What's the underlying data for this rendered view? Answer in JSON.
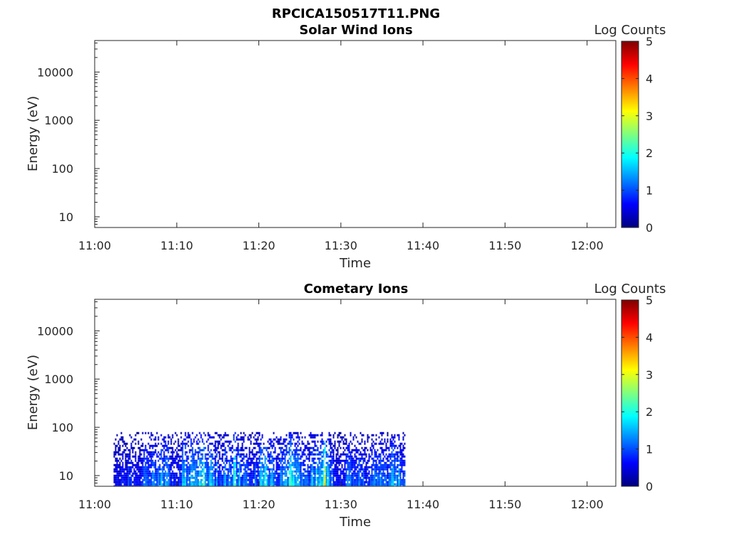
{
  "figure": {
    "title": "RPCICA150517T11.PNG"
  },
  "colorbar": {
    "colormap": "jet",
    "stops": [
      "#00007f",
      "#0000ff",
      "#007fff",
      "#00ffff",
      "#7fff7f",
      "#ffff00",
      "#ff7f00",
      "#ff0000",
      "#7f0000"
    ]
  },
  "chart_data": [
    {
      "type": "heatmap",
      "title": "Solar Wind Ions",
      "xlabel": "Time",
      "ylabel": "Energy (eV)",
      "x_tick_labels": [
        "11:00",
        "11:10",
        "11:20",
        "11:30",
        "11:40",
        "11:50",
        "12:00"
      ],
      "x_tick_minutes": [
        0,
        10,
        20,
        30,
        40,
        50,
        60
      ],
      "xlim_minutes": [
        0,
        63.5
      ],
      "y_scale": "log",
      "y_tick_labels": [
        "10",
        "100",
        "1000",
        "10000"
      ],
      "y_tick_values": [
        10,
        100,
        1000,
        10000
      ],
      "ylim": [
        6,
        45000
      ],
      "colorbar_label": "Log Counts",
      "colorbar_ticks": [
        "0",
        "1",
        "2",
        "3",
        "4",
        "5"
      ],
      "clim": [
        0,
        5
      ],
      "data_extent": null,
      "data": []
    },
    {
      "type": "heatmap",
      "title": "Cometary Ions",
      "xlabel": "Time",
      "ylabel": "Energy (eV)",
      "x_tick_labels": [
        "11:00",
        "11:10",
        "11:20",
        "11:30",
        "11:40",
        "11:50",
        "12:00"
      ],
      "x_tick_minutes": [
        0,
        10,
        20,
        30,
        40,
        50,
        60
      ],
      "xlim_minutes": [
        0,
        63.5
      ],
      "y_scale": "log",
      "y_tick_labels": [
        "10",
        "100",
        "1000",
        "10000"
      ],
      "y_tick_values": [
        10,
        100,
        1000,
        10000
      ],
      "ylim": [
        6,
        45000
      ],
      "colorbar_label": "Log Counts",
      "colorbar_ticks": [
        "0",
        "1",
        "2",
        "3",
        "4",
        "5"
      ],
      "clim": [
        0,
        5
      ],
      "data_extent": {
        "time_minutes": [
          2.3,
          37.8
        ],
        "energy_eV": [
          6,
          80
        ]
      },
      "data": [
        {
          "t": 3.0,
          "v": 0.4
        },
        {
          "t": 4.0,
          "v": 0.6
        },
        {
          "t": 5.0,
          "v": 0.5
        },
        {
          "t": 6.0,
          "v": 0.7
        },
        {
          "t": 7.0,
          "v": 0.9
        },
        {
          "t": 8.0,
          "v": 1.3
        },
        {
          "t": 9.0,
          "v": 0.8
        },
        {
          "t": 10.0,
          "v": 0.6
        },
        {
          "t": 11.0,
          "v": 1.1
        },
        {
          "t": 12.0,
          "v": 1.3
        },
        {
          "t": 13.0,
          "v": 1.6
        },
        {
          "t": 14.0,
          "v": 1.2
        },
        {
          "t": 15.0,
          "v": 0.8
        },
        {
          "t": 16.0,
          "v": 1.0
        },
        {
          "t": 17.0,
          "v": 1.4
        },
        {
          "t": 18.0,
          "v": 0.9
        },
        {
          "t": 19.0,
          "v": 0.7
        },
        {
          "t": 20.0,
          "v": 1.1
        },
        {
          "t": 21.0,
          "v": 1.3
        },
        {
          "t": 22.0,
          "v": 0.8
        },
        {
          "t": 23.0,
          "v": 0.9
        },
        {
          "t": 24.0,
          "v": 1.5
        },
        {
          "t": 25.0,
          "v": 1.0
        },
        {
          "t": 26.0,
          "v": 0.7
        },
        {
          "t": 27.0,
          "v": 1.6
        },
        {
          "t": 28.0,
          "v": 2.0
        },
        {
          "t": 29.0,
          "v": 0.8
        },
        {
          "t": 30.0,
          "v": 0.6
        },
        {
          "t": 31.0,
          "v": 1.0
        },
        {
          "t": 32.0,
          "v": 0.9
        },
        {
          "t": 33.0,
          "v": 0.7
        },
        {
          "t": 34.0,
          "v": 0.8
        },
        {
          "t": 35.0,
          "v": 1.0
        },
        {
          "t": 36.0,
          "v": 0.9
        },
        {
          "t": 37.0,
          "v": 1.2
        }
      ]
    }
  ]
}
